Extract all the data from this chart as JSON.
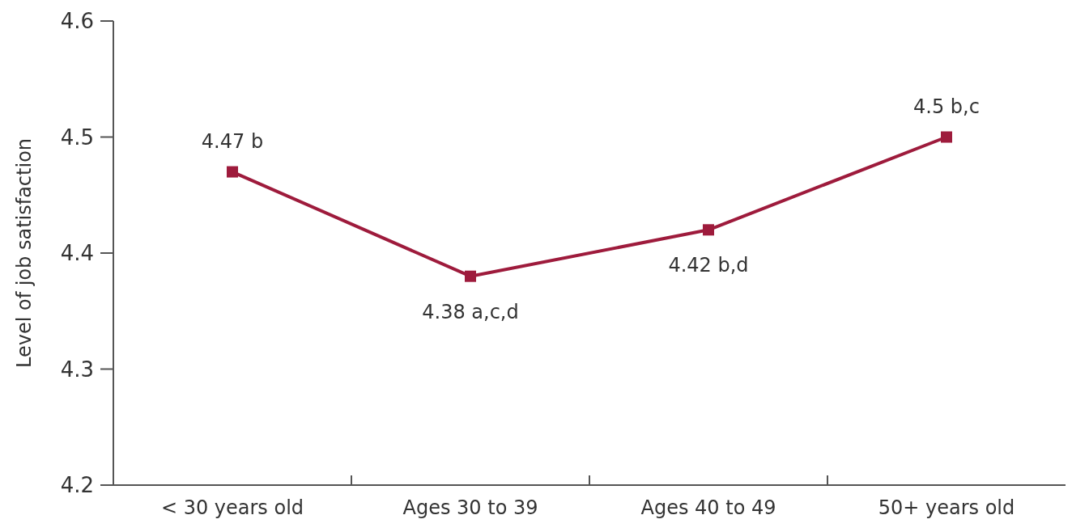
{
  "chart_data": {
    "type": "line",
    "ylabel": "Level of job satisfaction",
    "categories": [
      "< 30 years old",
      "Ages 30 to 39",
      "Ages 40 to 49",
      "50+ years old"
    ],
    "series": [
      {
        "color": "#9e1b3c",
        "values": [
          4.47,
          4.38,
          4.42,
          4.5
        ],
        "value_labels": [
          "4.47 b",
          "4.38 a,c,d",
          "4.42 b,d",
          "4.5 b,c"
        ]
      }
    ],
    "ylim": [
      4.2,
      4.6
    ],
    "yticks": [
      4.2,
      4.3,
      4.4,
      4.5,
      4.6
    ],
    "marker": "square",
    "line_style": "solid"
  }
}
